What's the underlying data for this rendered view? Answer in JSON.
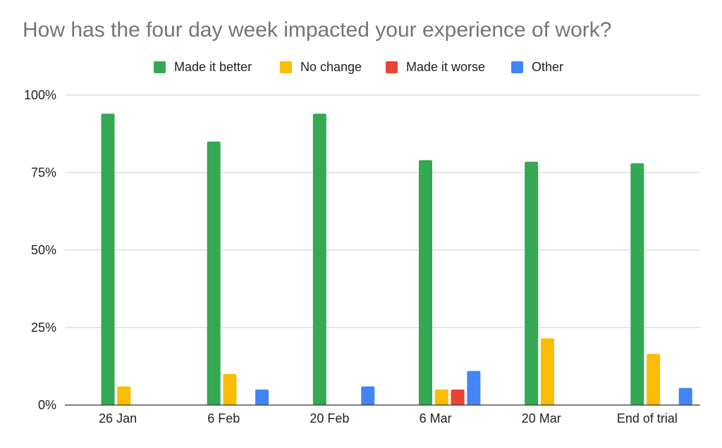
{
  "chart_data": {
    "type": "bar",
    "title": "How has the four day week impacted your experience of work?",
    "xlabel": "",
    "ylabel": "",
    "categories": [
      "26 Jan",
      "6 Feb",
      "20 Feb",
      "6 Mar",
      "20 Mar",
      "End of trial"
    ],
    "series": [
      {
        "name": "Made it better",
        "color": "#34A853",
        "values": [
          94,
          85,
          94,
          79,
          78.5,
          78
        ]
      },
      {
        "name": "No change",
        "color": "#FBBC04",
        "values": [
          6,
          10,
          0,
          5,
          21.5,
          16.5
        ]
      },
      {
        "name": "Made it worse",
        "color": "#EA4335",
        "values": [
          0,
          0,
          0,
          5,
          0,
          0
        ]
      },
      {
        "name": "Other",
        "color": "#4285F4",
        "values": [
          0,
          5,
          6,
          11,
          0,
          5.5
        ]
      }
    ],
    "ylim": [
      0,
      100
    ],
    "yticks": [
      0,
      25,
      50,
      75,
      100
    ],
    "ytick_labels": [
      "0%",
      "25%",
      "50%",
      "75%",
      "100%"
    ],
    "grid": true,
    "legend_position": "top"
  }
}
